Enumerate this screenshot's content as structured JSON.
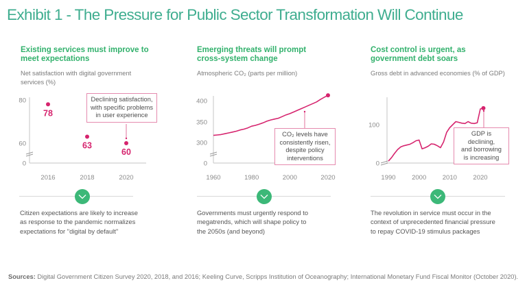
{
  "title": "Exhibit 1 - The Pressure for Public Sector Transformation Will Continue",
  "colors": {
    "title": "#3fad8f",
    "heading": "#32b16c",
    "accent": "#d6246e",
    "callout_border": "#e58aae",
    "chevron": "#3cb878"
  },
  "panels": [
    {
      "heading": [
        "Existing services must improve to",
        "meet expectations"
      ],
      "subtitle": [
        "Net satisfaction with digital government",
        "services (%)"
      ],
      "callout": [
        "Declining satisfaction,",
        "with specific problems",
        "in user experience"
      ],
      "footer": [
        "Citizen expectations are likely to increase",
        "as response to the pandemic normalizes",
        "expectations for \"digital by default\""
      ],
      "icon": "chevron-down-icon"
    },
    {
      "heading": [
        "Emerging threats will prompt",
        "cross-system change"
      ],
      "subtitle": [
        "Atmospheric CO₂ (parts per million)"
      ],
      "callout": [
        "CO₂ levels have",
        "consistently risen,",
        "despite policy",
        "interventions"
      ],
      "footer": [
        "Governments must urgently respond to",
        "megatrends, which will shape policy to",
        "the 2050s (and beyond)"
      ],
      "icon": "chevron-down-icon"
    },
    {
      "heading": [
        "Cost control is urgent, as",
        "government debt soars"
      ],
      "subtitle": [
        "Gross debt in advanced economies (% of GDP)"
      ],
      "callout": [
        "GDP is declining,",
        "and borrowing",
        "is increasing"
      ],
      "footer": [
        "The revolution in service must occur in the",
        "context of unprecedented financial pressure",
        "to repay COVID-19 stimulus packages"
      ],
      "icon": "chevron-down-icon"
    }
  ],
  "sources": {
    "label": "Sources:",
    "text": " Digital Government Citizen Survey 2020, 2018, and 2016;  Keeling Curve, Scripps Institution of Oceanography; International Monetary Fund Fiscal Monitor (October 2020)."
  },
  "chart_data": [
    {
      "type": "scatter",
      "title": "Net satisfaction with digital government services (%)",
      "x": [
        "2016",
        "2018",
        "2020"
      ],
      "values": [
        78,
        63,
        60
      ],
      "data_labels": [
        "78",
        "63",
        "60"
      ],
      "yticks": [
        "0",
        "60",
        "80"
      ],
      "xticks": [
        "2016",
        "2018",
        "2020"
      ],
      "ylim": [
        0,
        80
      ],
      "axis_break": true,
      "annotation": "Declining satisfaction, with specific problems in user experience",
      "grid": false
    },
    {
      "type": "line",
      "title": "Atmospheric CO2 (parts per million)",
      "x": [
        1960,
        1962,
        1964,
        1966,
        1968,
        1970,
        1972,
        1974,
        1976,
        1978,
        1980,
        1982,
        1984,
        1986,
        1988,
        1990,
        1992,
        1994,
        1996,
        1998,
        2000,
        2002,
        2004,
        2006,
        2008,
        2010,
        2012,
        2014,
        2016,
        2018,
        2020
      ],
      "values": [
        317,
        318,
        319,
        321,
        323,
        325,
        327,
        330,
        332,
        335,
        339,
        341,
        344,
        347,
        351,
        354,
        356,
        358,
        362,
        366,
        369,
        373,
        377,
        381,
        385,
        389,
        393,
        397,
        403,
        408,
        413
      ],
      "yticks": [
        "0",
        "300",
        "350",
        "400"
      ],
      "xticks": [
        "1960",
        "1980",
        "2000",
        "2020"
      ],
      "ylim": [
        0,
        415
      ],
      "axis_break": true,
      "annotation": "CO2 levels have consistently risen, despite policy interventions",
      "grid": false
    },
    {
      "type": "line",
      "title": "Gross debt in advanced economies (% of GDP)",
      "x": [
        1990,
        1991,
        1992,
        1993,
        1994,
        1995,
        1996,
        1997,
        1998,
        1999,
        2000,
        2001,
        2002,
        2003,
        2004,
        2005,
        2006,
        2007,
        2008,
        2009,
        2010,
        2011,
        2012,
        2013,
        2014,
        2015,
        2016,
        2017,
        2018,
        2019,
        2020,
        2021
      ],
      "values": [
        5,
        14,
        25,
        35,
        42,
        45,
        47,
        49,
        53,
        58,
        60,
        37,
        40,
        44,
        50,
        49,
        45,
        40,
        55,
        80,
        92,
        100,
        108,
        106,
        104,
        103,
        108,
        104,
        103,
        105,
        141,
        143
      ],
      "yticks": [
        "0",
        "100"
      ],
      "xticks": [
        "1990",
        "2000",
        "2010",
        "2020"
      ],
      "ylim": [
        0,
        150
      ],
      "axis_break": true,
      "annotation": "GDP is declining, and borrowing is increasing",
      "grid": false
    }
  ]
}
